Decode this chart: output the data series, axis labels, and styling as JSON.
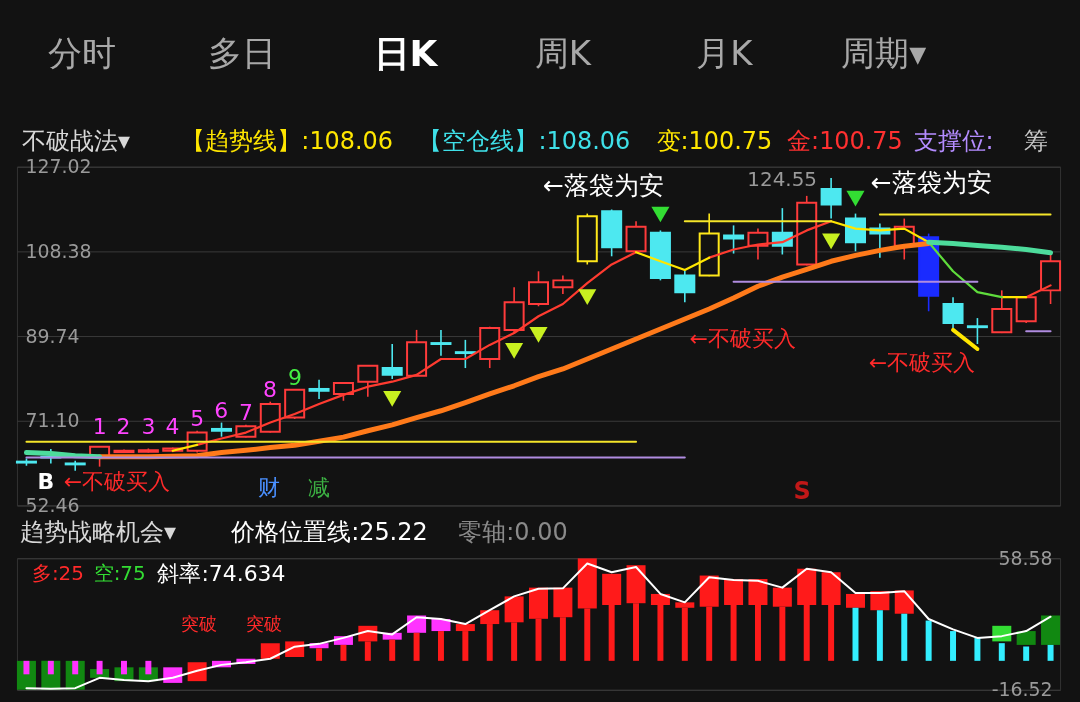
{
  "chart_data": [
    {
      "type": "candlestick",
      "title": "不破战法▾",
      "categories": [
        null,
        null,
        null,
        null,
        null,
        null,
        null,
        null,
        null,
        null,
        null,
        null,
        null,
        null,
        null,
        null,
        null,
        null,
        null,
        null,
        null,
        null,
        null,
        null,
        null,
        null,
        null,
        null,
        null,
        null,
        null,
        null,
        null,
        null,
        null,
        null,
        null,
        null,
        null,
        null,
        null,
        null,
        null
      ],
      "ohlc": [
        [
          62.1,
          62.8,
          61.2,
          61.9
        ],
        [
          63.2,
          64.9,
          61.7,
          63.0
        ],
        [
          61.7,
          62.3,
          60.1,
          61.5
        ],
        [
          63.0,
          65.4,
          61.0,
          65.4
        ],
        [
          64.2,
          64.8,
          64.1,
          64.5
        ],
        [
          64.3,
          65.0,
          64.1,
          64.6
        ],
        [
          64.5,
          65.2,
          64.2,
          65.0
        ],
        [
          64.5,
          68.9,
          64.1,
          68.5
        ],
        [
          69.3,
          70.7,
          67.6,
          68.9
        ],
        [
          67.6,
          70.2,
          67.4,
          69.9
        ],
        [
          68.7,
          75.3,
          68.5,
          74.8
        ],
        [
          71.8,
          77.9,
          71.5,
          77.9
        ],
        [
          78.1,
          80.1,
          75.9,
          77.7
        ],
        [
          77.0,
          79.4,
          75.5,
          79.4
        ],
        [
          79.7,
          83.2,
          76.4,
          83.2
        ],
        [
          82.7,
          88.0,
          80.3,
          81.2
        ],
        [
          81.0,
          91.1,
          80.9,
          88.4
        ],
        [
          88.2,
          91.1,
          85.4,
          88.0
        ],
        [
          86.2,
          88.9,
          82.7,
          86.0
        ],
        [
          84.7,
          91.8,
          82.7,
          91.5
        ],
        [
          91.1,
          100.5,
          90.4,
          97.2
        ],
        [
          96.8,
          104.0,
          96.3,
          101.6
        ],
        [
          100.5,
          103.1,
          99.0,
          102.0
        ],
        [
          106.2,
          116.7,
          105.5,
          116.1
        ],
        [
          117.2,
          117.6,
          107.3,
          109.3
        ],
        [
          108.4,
          115.0,
          108.2,
          113.8
        ],
        [
          112.5,
          113.0,
          102.0,
          102.5
        ],
        [
          103.1,
          104.2,
          97.2,
          99.4
        ],
        [
          103.1,
          116.7,
          102.9,
          112.3
        ],
        [
          111.9,
          114.1,
          107.9,
          111.2
        ],
        [
          109.6,
          113.4,
          106.6,
          112.5
        ],
        [
          112.5,
          117.9,
          107.7,
          109.6
        ],
        [
          105.5,
          120.6,
          105.3,
          119.1
        ],
        [
          122.1,
          124.55,
          115.6,
          118.7
        ],
        [
          115.6,
          116.7,
          108.4,
          110.4
        ],
        [
          113.4,
          114.5,
          107.0,
          112.3
        ],
        [
          109.6,
          115.6,
          106.6,
          113.8
        ],
        [
          111.5,
          112.3,
          95.2,
          98.6
        ],
        [
          96.8,
          98.3,
          91.5,
          92.6
        ],
        [
          91.9,
          93.7,
          88.0,
          91.7
        ],
        [
          90.6,
          99.8,
          90.4,
          95.7
        ],
        [
          93.0,
          98.3,
          92.6,
          98.3
        ],
        [
          99.8,
          107.7,
          96.8,
          106.2
        ]
      ],
      "colors": [
        "#4de8f0",
        "#4de8f0",
        "#4de8f0",
        "#ff3b3b",
        "#ff3b3b",
        "#ff3b3b",
        "#ff3b3b",
        "#ff3b3b",
        "#4de8f0",
        "#ff3b3b",
        "#ff3b3b",
        "#ff3b3b",
        "#4de8f0",
        "#ff3b3b",
        "#ff3b3b",
        "#4de8f0",
        "#ff3b3b",
        "#4de8f0",
        "#4de8f0",
        "#ff3b3b",
        "#ff3b3b",
        "#ff3b3b",
        "#ff3b3b",
        "#ffe81a",
        "#4de8f0",
        "#ff3b3b",
        "#4de8f0",
        "#4de8f0",
        "#ffe81a",
        "#4de8f0",
        "#ff3b3b",
        "#4de8f0",
        "#ff3b3b",
        "#4de8f0",
        "#4de8f0",
        "#4de8f0",
        "#ff3b3b",
        "#1a2bff",
        "#4de8f0",
        "#4de8f0",
        "#ff3b3b",
        "#ff3b3b",
        "#ff3b3b"
      ],
      "ylim": [
        52.46,
        127.02
      ],
      "yticks": [
        127.02,
        108.38,
        89.74,
        {
          "value": 71.1,
          "label": "71.10"
        },
        52.46
      ],
      "grid": "y",
      "tick_labels": "y",
      "series": [
        {
          "type": "line",
          "color": "#ff3b30",
          "values": [
            null,
            null,
            null,
            null,
            null,
            null,
            null,
            65.8,
            67.2,
            68.5,
            70.7,
            72.6,
            74.8,
            76.8,
            78.6,
            79.7,
            81.2,
            84.7,
            84.7,
            87.8,
            90.4,
            94.1,
            96.8,
            101.4,
            105.5,
            108.2,
            null,
            null,
            107.0,
            108.8,
            109.9,
            110.4,
            113.0,
            115.0,
            null,
            null,
            null,
            null,
            null,
            null,
            null,
            98.3,
            100.9
          ]
        },
        {
          "type": "line",
          "color": "#ffe600",
          "values": [
            null,
            null,
            null,
            null,
            null,
            null,
            64.5,
            65.8,
            null,
            null,
            null,
            null,
            null,
            null,
            null,
            null,
            null,
            null,
            null,
            null,
            null,
            null,
            null,
            null,
            null,
            108.2,
            106.2,
            104.3,
            107.0,
            null,
            null,
            null,
            null,
            115.0,
            113.4,
            113.0,
            113.4,
            110.4,
            null,
            null,
            98.3,
            98.3,
            null
          ]
        },
        {
          "type": "line",
          "color": "#5fdc3c",
          "values": [
            null,
            null,
            null,
            null,
            null,
            null,
            null,
            null,
            null,
            null,
            null,
            null,
            null,
            null,
            null,
            null,
            null,
            null,
            null,
            null,
            null,
            null,
            null,
            null,
            null,
            null,
            null,
            null,
            null,
            null,
            null,
            null,
            null,
            null,
            null,
            null,
            null,
            110.4,
            104.0,
            99.4,
            98.3,
            null,
            null
          ]
        },
        {
          "type": "line",
          "color": "#ff7a1a",
          "values": [
            null,
            null,
            null,
            63.2,
            63.2,
            63.2,
            63.3,
            63.4,
            64.1,
            64.6,
            65.2,
            65.7,
            66.6,
            67.5,
            68.9,
            70.2,
            71.8,
            73.3,
            75.1,
            77.0,
            78.8,
            80.8,
            82.5,
            84.7,
            86.9,
            89.1,
            91.3,
            93.5,
            95.7,
            98.1,
            100.7,
            102.7,
            104.4,
            106.2,
            107.5,
            108.6,
            109.5,
            110.1,
            null,
            null,
            null,
            null,
            null
          ]
        },
        {
          "type": "line",
          "color": "#4ddc9c",
          "values": [
            64.1,
            63.9,
            63.4,
            63.2,
            null,
            null,
            null,
            null,
            null,
            null,
            null,
            null,
            null,
            null,
            null,
            null,
            null,
            null,
            null,
            null,
            null,
            null,
            null,
            null,
            null,
            null,
            null,
            null,
            null,
            null,
            null,
            null,
            null,
            null,
            null,
            null,
            null,
            110.4,
            110.1,
            109.7,
            109.3,
            108.8,
            108.1
          ]
        },
        {
          "type": "line",
          "color": "#f5e62a",
          "values": [
            66.5,
            66.5,
            66.5,
            66.5,
            66.5,
            66.5,
            66.5,
            66.5,
            66.5,
            66.5,
            66.5,
            66.5,
            66.5,
            66.5,
            66.5,
            66.5,
            66.5,
            66.5,
            66.5,
            66.5,
            66.5,
            66.5,
            66.5,
            66.5,
            66.5,
            66.5,
            null,
            115.0,
            115.0,
            115.0,
            115.0,
            115.0,
            115.0,
            115.0,
            null,
            116.5,
            116.5,
            116.5,
            116.5,
            116.5,
            116.5,
            116.5,
            116.5
          ]
        },
        {
          "type": "line",
          "color": "#b08ce0",
          "values": [
            63.0,
            63.0,
            63.0,
            63.0,
            63.0,
            63.0,
            63.0,
            63.0,
            63.0,
            63.0,
            63.0,
            63.0,
            63.0,
            63.0,
            63.0,
            63.0,
            63.0,
            63.0,
            63.0,
            63.0,
            63.0,
            63.0,
            63.0,
            63.0,
            63.0,
            63.0,
            63.0,
            63.0,
            null,
            101.7,
            101.7,
            101.7,
            101.7,
            101.7,
            101.7,
            101.7,
            101.7,
            101.7,
            101.7,
            101.7,
            null,
            90.8,
            90.8
          ]
        },
        {
          "type": "line",
          "color": "#ffe600",
          "values": [
            null,
            null,
            null,
            null,
            null,
            null,
            null,
            null,
            null,
            null,
            null,
            null,
            null,
            null,
            null,
            null,
            null,
            null,
            null,
            null,
            null,
            null,
            null,
            null,
            null,
            null,
            null,
            null,
            null,
            null,
            null,
            null,
            null,
            null,
            null,
            null,
            null,
            null,
            91.1,
            86.9,
            null,
            null,
            null
          ]
        },
        {
          "type": "scatter",
          "marker": "triangle",
          "values": [
            null,
            null,
            null,
            null,
            null,
            null,
            null,
            null,
            null,
            null,
            null,
            null,
            null,
            null,
            null,
            75.9,
            null,
            null,
            null,
            null,
            86.5,
            90.0,
            null,
            98.3,
            null,
            null,
            116.5,
            null,
            null,
            null,
            null,
            null,
            null,
            110.6,
            120.0,
            null,
            null,
            null,
            null,
            null,
            null,
            null,
            null
          ],
          "colors": [
            null,
            null,
            null,
            null,
            null,
            null,
            null,
            null,
            null,
            null,
            null,
            null,
            null,
            null,
            null,
            "#c8f020",
            null,
            null,
            null,
            null,
            "#c8f020",
            "#c8f020",
            null,
            "#c8f020",
            null,
            null,
            "#33dd33",
            null,
            null,
            null,
            null,
            null,
            null,
            "#c8f020",
            "#33dd33",
            null,
            null,
            null,
            null,
            null,
            null,
            null,
            null
          ]
        }
      ],
      "annotations": [
        "分时",
        "多日",
        "日K",
        "周K",
        "月K",
        "周期▾",
        "【趋势线】:108.06",
        "【空仓线】:108.06",
        "变:100.75",
        "金:100.75",
        "支撑位:",
        "筹",
        "←落袋为安",
        "←落袋为安",
        "124.55",
        "←不破买入",
        "←不破买入",
        "←不破买入",
        "1",
        "2",
        "3",
        "4",
        "5",
        "6",
        "7",
        "8",
        "9",
        "B",
        "S",
        "财",
        "减"
      ]
    },
    {
      "type": "bar",
      "title": "趋势战略机会▾",
      "categories": [
        null,
        null,
        null,
        null,
        null,
        null,
        null,
        null,
        null,
        null,
        null,
        null,
        null,
        null,
        null,
        null,
        null,
        null,
        null,
        null,
        null,
        null,
        null,
        null,
        null,
        null,
        null,
        null,
        null,
        null,
        null,
        null,
        null,
        null,
        null,
        null,
        null,
        null,
        null,
        null,
        null,
        null,
        null
      ],
      "ylim": [
        -16.52,
        58.58
      ],
      "yticks": [
        58.58,
        -16.52
      ],
      "grid": "y",
      "tick_labels": "y",
      "series": [
        {
          "type": "bar",
          "base": [
            -16.5,
            -16.5,
            -16.5,
            -9.7,
            -11.6,
            -11.6,
            -12.6,
            -11.6,
            -3.7,
            -1.8,
            1.2,
            2.2,
            7.2,
            9.1,
            11.1,
            12.1,
            16.0,
            17.0,
            17.0,
            21.0,
            22.0,
            24.0,
            24.9,
            29.9,
            31.9,
            32.9,
            31.9,
            30.3,
            30.9,
            31.9,
            31.9,
            30.9,
            31.9,
            31.9,
            30.3,
            28.9,
            26.9,
            null,
            null,
            null,
            11.1,
            9.1,
            9.1
          ],
          "values": [
            16.5,
            16.5,
            16.5,
            5.0,
            7.9,
            7.9,
            8.9,
            10.8,
            3.7,
            3.0,
            8.9,
            8.9,
            2.9,
            5.0,
            8.9,
            3.9,
            9.9,
            6.9,
            4.0,
            7.9,
            14.8,
            17.8,
            16.9,
            28.6,
            17.8,
            21.7,
            6.3,
            3.1,
            17.8,
            14.8,
            14.8,
            10.9,
            20.7,
            18.7,
            7.9,
            10.9,
            13.3,
            null,
            null,
            null,
            8.9,
            7.9,
            16.8
          ],
          "colors": [
            "#118811",
            "#118811",
            "#118811",
            "#118811",
            "#118811",
            "#118811",
            "#ff33ff",
            "#ff1a1a",
            "#ff33ff",
            "#ff33ff",
            "#ff1a1a",
            "#ff1a1a",
            "#ff33ff",
            "#ff33ff",
            "#ff1a1a",
            "#ff33ff",
            "#ff33ff",
            "#ff33ff",
            "#ff1a1a",
            "#ff1a1a",
            "#ff1a1a",
            "#ff1a1a",
            "#ff1a1a",
            "#ff1a1a",
            "#ff1a1a",
            "#ff1a1a",
            "#ff1a1a",
            "#ff1a1a",
            "#ff1a1a",
            "#ff1a1a",
            "#ff1a1a",
            "#ff1a1a",
            "#ff1a1a",
            "#ff1a1a",
            "#ff1a1a",
            "#ff1a1a",
            "#ff1a1a",
            null,
            null,
            null,
            "#33dd33",
            "#118811",
            "#118811"
          ]
        },
        {
          "type": "bar",
          "values": [
            -7.7,
            -7.7,
            -7.7,
            -7.7,
            -7.7,
            -7.7,
            null,
            null,
            null,
            null,
            null,
            null,
            7.2,
            9.1,
            11.1,
            12.1,
            16.0,
            17.0,
            17.0,
            21.0,
            22.0,
            24.0,
            24.9,
            29.9,
            31.9,
            32.9,
            31.9,
            30.3,
            30.9,
            31.9,
            31.9,
            30.9,
            31.9,
            31.9,
            30.3,
            28.9,
            26.9,
            23.0,
            17.0,
            13.1,
            10.1,
            8.2,
            9.1
          ],
          "colors": [
            "#ff33ff",
            "#ff33ff",
            "#ff33ff",
            "#ff33ff",
            "#ff33ff",
            "#ff33ff",
            null,
            null,
            null,
            null,
            null,
            null,
            "#ff1a1a",
            "#ff1a1a",
            "#ff1a1a",
            "#ff1a1a",
            "#ff1a1a",
            "#ff1a1a",
            "#ff1a1a",
            "#ff1a1a",
            "#ff1a1a",
            "#ff1a1a",
            "#ff1a1a",
            "#ff1a1a",
            "#ff1a1a",
            "#ff1a1a",
            "#ff1a1a",
            "#ff1a1a",
            "#ff1a1a",
            "#ff1a1a",
            "#ff1a1a",
            "#ff1a1a",
            "#ff1a1a",
            "#ff1a1a",
            "#33eeff",
            "#33eeff",
            "#33eeff",
            "#33eeff",
            "#33eeff",
            "#33eeff",
            "#33eeff",
            "#33eeff",
            "#33eeff"
          ]
        },
        {
          "type": "line",
          "color": "#ffffff",
          "values": [
            -15.6,
            -16.0,
            -15.6,
            -9.7,
            -11.0,
            -11.6,
            -9.7,
            -5.7,
            -2.3,
            -0.8,
            1.2,
            8.1,
            9.7,
            13.1,
            17.0,
            15.1,
            24.9,
            23.9,
            21.0,
            28.9,
            36.8,
            41.2,
            41.4,
            55.6,
            50.6,
            53.6,
            38.2,
            33.4,
            47.7,
            46.1,
            45.7,
            41.8,
            52.6,
            50.6,
            38.8,
            38.8,
            39.8,
            23.9,
            18.0,
            13.1,
            14.1,
            17.0,
            25.2
          ]
        }
      ],
      "annotations": [
        "价格位置线:25.22",
        "零轴:0.00",
        "多:25",
        "空:75",
        "斜率:74.634",
        "突破",
        "突破"
      ]
    }
  ]
}
